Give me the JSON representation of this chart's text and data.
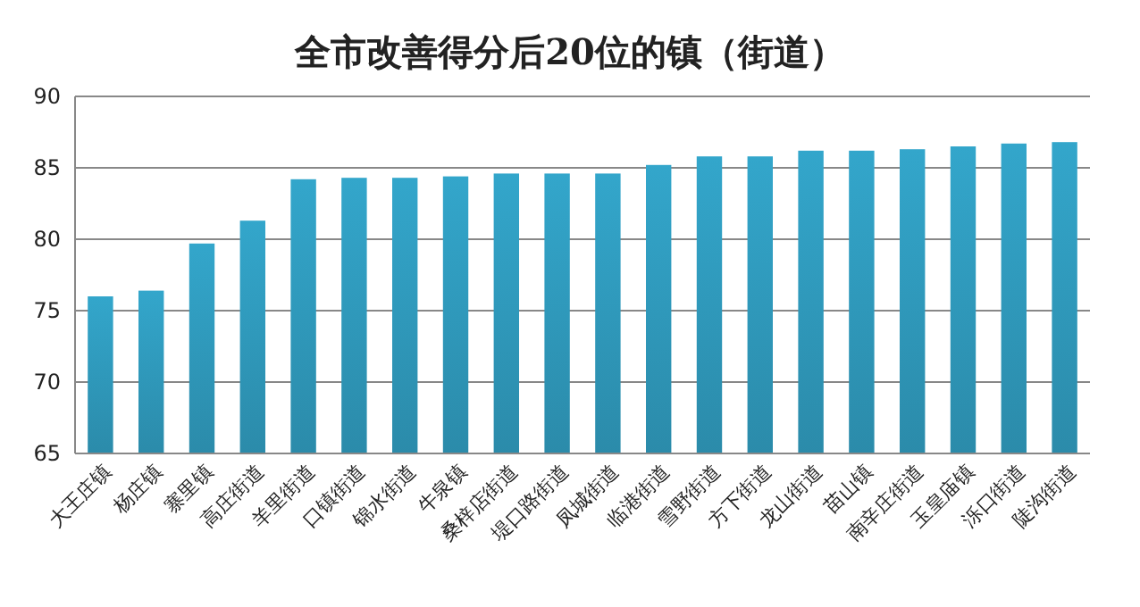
{
  "chart_data": {
    "type": "bar",
    "title": "全市改善得分后20位的镇（街道）",
    "categories": [
      "大王庄镇",
      "杨庄镇",
      "寨里镇",
      "高庄街道",
      "羊里街道",
      "口镇街道",
      "锦水街道",
      "牛泉镇",
      "桑梓店街道",
      "堤口路街道",
      "凤城街道",
      "临港街道",
      "雪野街道",
      "方下街道",
      "龙山街道",
      "苗山镇",
      "南辛庄街道",
      "玉皇庙镇",
      "泺口街道",
      "陡沟街道"
    ],
    "values": [
      76.0,
      76.4,
      79.7,
      81.3,
      84.2,
      84.3,
      84.3,
      84.4,
      84.6,
      84.6,
      84.6,
      85.2,
      85.8,
      85.8,
      86.2,
      86.2,
      86.3,
      86.5,
      86.7,
      86.8
    ],
    "color": "#33a6cb",
    "ylim": [
      65,
      90
    ],
    "yticks": [
      65,
      70,
      75,
      80,
      85,
      90
    ],
    "grid": "y"
  }
}
